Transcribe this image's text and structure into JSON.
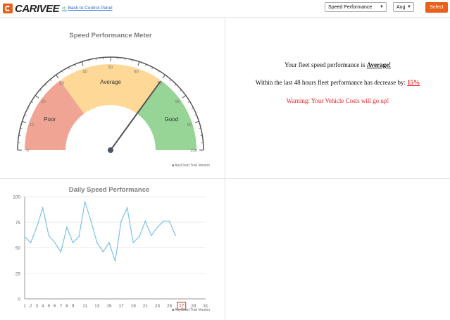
{
  "header": {
    "logo_text": "CARIVEE",
    "back_link": "Back to Control Panel",
    "report_select": "Speed Performance",
    "month_select": "Aug",
    "select_button": "Select"
  },
  "colors": {
    "accent": "#e8601c",
    "poor": "#f0a494",
    "average": "#fed896",
    "good": "#96d596",
    "line": "#7cc1e8",
    "warning": "#ee2222"
  },
  "gauge": {
    "title": "Speed Performance Meter",
    "value": 70,
    "range": [
      0,
      100
    ],
    "ticks": [
      "0",
      "10",
      "20",
      "30",
      "40",
      "50",
      "60",
      "70",
      "80",
      "90",
      "100"
    ],
    "bands": [
      {
        "label": "Poor",
        "from": 0,
        "to": 30
      },
      {
        "label": "Average",
        "from": 30,
        "to": 70
      },
      {
        "label": "Good",
        "from": 70,
        "to": 100
      }
    ],
    "trial_note": "AnyChart Trial Version"
  },
  "messages": {
    "line1_prefix": "Your fleet speed performance is ",
    "line1_value": "Average!",
    "line2_prefix": "Within the last 48 hours fleet performance has decrease by: ",
    "line2_value": "15%",
    "warning": "Warning: Your Vehicle Costs will go up!"
  },
  "chart_data": {
    "type": "line",
    "title": "Daily Speed Performance",
    "x": [
      1,
      2,
      3,
      4,
      5,
      6,
      7,
      8,
      9,
      10,
      11,
      12,
      13,
      14,
      15,
      16,
      17,
      18,
      19,
      20,
      21,
      22,
      23,
      24,
      25,
      26
    ],
    "values": [
      61,
      55,
      70,
      89,
      62,
      55,
      46,
      70,
      55,
      61,
      95,
      76,
      55,
      46,
      55,
      37,
      76,
      89,
      55,
      61,
      76,
      62,
      70,
      76,
      76,
      62
    ],
    "xticks": [
      "1",
      "2",
      "3",
      "4",
      "5",
      "6",
      "7",
      "8",
      "9",
      "11",
      "13",
      "15",
      "17",
      "19",
      "21",
      "23",
      "25",
      "27",
      "29",
      "31"
    ],
    "yticks": [
      "0",
      "25",
      "50",
      "75",
      "100"
    ],
    "ylim": [
      0,
      100
    ],
    "xlim": [
      1,
      31
    ],
    "highlight_x": "27",
    "trial_note": "AnyChart Trial Version"
  }
}
